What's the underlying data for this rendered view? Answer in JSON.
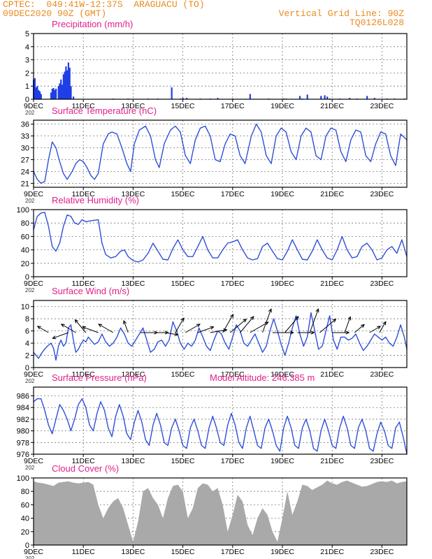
{
  "header": {
    "line1": "CPTEC:  049:41W-12:37S  ARAGUACU (TO)",
    "line2": "09DEC2020 90Z (GMT)",
    "right1": "Vertical Grid Line: 90Z",
    "right2": "TQ0126L028"
  },
  "colors": {
    "header": "#e98a1f",
    "title": "#e0208a",
    "line": "#2f4fd8",
    "bar": "#1f3fe6",
    "cloud": "#a9a9a9",
    "arrow": "#000000"
  },
  "x_axis": {
    "range_days": [
      9,
      24
    ],
    "tick_days": [
      9,
      11,
      13,
      15,
      17,
      19,
      21,
      23
    ],
    "tick_labels": [
      "9DEC",
      "11DEC",
      "13DEC",
      "15DEC",
      "17DEC",
      "19DEC",
      "21DEC",
      "23DEC"
    ],
    "year_label": "202"
  },
  "chart_data": [
    {
      "id": "precip",
      "type": "bar",
      "title": "Precipitation (mm/h)",
      "ylim": [
        0,
        5
      ],
      "yticks": [
        0,
        1,
        2,
        3,
        4,
        5
      ],
      "x": [
        9.0,
        9.05,
        9.1,
        9.15,
        9.2,
        9.25,
        9.3,
        9.7,
        9.75,
        9.8,
        9.85,
        9.9,
        10.0,
        10.05,
        10.1,
        10.15,
        10.2,
        10.25,
        10.3,
        10.35,
        10.4,
        10.45,
        10.5,
        10.6,
        12.2,
        12.8,
        13.6,
        14.0,
        14.55,
        14.9,
        15.0,
        15.15,
        15.7,
        16.1,
        16.4,
        17.0,
        17.7,
        18.45,
        19.05,
        19.15,
        19.7,
        19.8,
        20.0,
        20.55,
        20.7,
        20.8,
        20.9,
        21.3,
        21.7,
        22.0,
        22.4,
        22.7,
        23.2,
        23.5,
        23.9
      ],
      "values": [
        1.5,
        1.6,
        0.9,
        1.0,
        0.7,
        0.6,
        0.4,
        0.5,
        0.8,
        0.85,
        0.7,
        0.8,
        1.0,
        1.2,
        1.5,
        1.1,
        1.9,
        2.1,
        2.5,
        2.2,
        2.8,
        2.4,
        1.0,
        0.2,
        0.05,
        0.05,
        0.05,
        0.05,
        0.9,
        0.05,
        0.1,
        0.1,
        0.05,
        0.05,
        0.1,
        0.05,
        0.4,
        0.05,
        0.05,
        0.05,
        0.25,
        0.05,
        0.35,
        0.25,
        0.3,
        0.2,
        0.05,
        0.05,
        0.1,
        0.05,
        0.25,
        0.1,
        0.05,
        0.05,
        0.05
      ]
    },
    {
      "id": "temp",
      "type": "line",
      "title": "Surface Temperature (nC)",
      "ylim": [
        20,
        37
      ],
      "yticks": [
        21,
        24,
        27,
        30,
        33,
        36
      ],
      "x": [
        9.0,
        9.15,
        9.3,
        9.45,
        9.6,
        9.75,
        9.9,
        10.05,
        10.2,
        10.35,
        10.55,
        10.7,
        10.85,
        11.0,
        11.15,
        11.3,
        11.45,
        11.6,
        11.8,
        12.0,
        12.15,
        12.35,
        12.55,
        12.75,
        12.9,
        13.05,
        13.25,
        13.5,
        13.7,
        13.9,
        14.05,
        14.25,
        14.5,
        14.7,
        14.9,
        15.1,
        15.3,
        15.5,
        15.7,
        15.9,
        16.1,
        16.3,
        16.5,
        16.7,
        16.9,
        17.1,
        17.3,
        17.5,
        17.75,
        17.95,
        18.15,
        18.35,
        18.55,
        18.75,
        18.95,
        19.15,
        19.35,
        19.55,
        19.75,
        19.95,
        20.15,
        20.35,
        20.55,
        20.75,
        20.95,
        21.15,
        21.35,
        21.55,
        21.75,
        21.95,
        22.15,
        22.35,
        22.55,
        22.75,
        22.95,
        23.15,
        23.35,
        23.55,
        23.75,
        24.0
      ],
      "values": [
        24,
        22,
        21,
        21.5,
        27,
        31.5,
        30,
        26.5,
        23.5,
        22,
        24,
        26,
        27,
        26.5,
        25,
        23,
        22,
        23.5,
        31,
        33.5,
        34,
        33.5,
        30,
        26,
        24,
        31,
        34.5,
        35.5,
        33,
        27,
        25,
        31,
        34.5,
        35.5,
        34,
        28,
        26,
        32,
        35,
        35.5,
        33,
        27,
        26.5,
        31,
        33.5,
        33,
        28,
        26,
        33,
        36,
        34,
        28,
        26,
        33,
        35,
        34,
        29,
        27,
        33,
        35,
        34,
        28,
        27,
        33,
        35,
        34.5,
        29,
        26.5,
        32,
        34.5,
        34,
        28,
        26.5,
        31,
        34,
        33.5,
        28,
        25.5,
        33.5,
        32
      ]
    },
    {
      "id": "rh",
      "type": "line",
      "title": "Relative Humidity (%)",
      "ylim": [
        0,
        100
      ],
      "yticks": [
        0,
        20,
        40,
        60,
        80,
        100
      ],
      "x": [
        9.0,
        9.15,
        9.3,
        9.45,
        9.6,
        9.75,
        9.9,
        10.05,
        10.2,
        10.35,
        10.5,
        10.65,
        10.8,
        10.95,
        11.1,
        11.25,
        11.4,
        11.6,
        11.75,
        11.9,
        12.1,
        12.3,
        12.5,
        12.65,
        12.8,
        13.0,
        13.2,
        13.4,
        13.6,
        13.8,
        14.0,
        14.2,
        14.4,
        14.6,
        14.8,
        15.0,
        15.2,
        15.4,
        15.6,
        15.8,
        16.0,
        16.2,
        16.4,
        16.6,
        16.8,
        17.0,
        17.2,
        17.4,
        17.6,
        17.8,
        18.0,
        18.2,
        18.4,
        18.6,
        18.8,
        19.0,
        19.2,
        19.4,
        19.6,
        19.8,
        20.0,
        20.2,
        20.4,
        20.6,
        20.8,
        21.0,
        21.2,
        21.4,
        21.6,
        21.8,
        22.0,
        22.2,
        22.4,
        22.6,
        22.8,
        23.0,
        23.2,
        23.4,
        23.6,
        23.8,
        24.0
      ],
      "values": [
        70,
        90,
        95,
        96,
        75,
        45,
        38,
        50,
        75,
        92,
        90,
        80,
        78,
        85,
        82,
        83,
        84,
        85,
        50,
        33,
        28,
        30,
        38,
        40,
        30,
        24,
        22,
        25,
        35,
        50,
        38,
        26,
        25,
        42,
        55,
        40,
        30,
        30,
        45,
        60,
        40,
        28,
        28,
        40,
        50,
        52,
        55,
        40,
        28,
        25,
        27,
        45,
        50,
        38,
        27,
        25,
        38,
        55,
        40,
        26,
        25,
        38,
        55,
        40,
        28,
        25,
        40,
        60,
        40,
        28,
        30,
        45,
        50,
        40,
        25,
        28,
        40,
        45,
        35,
        55,
        30
      ]
    },
    {
      "id": "wind",
      "type": "line",
      "title": "Surface Wind (m/s)",
      "ylim": [
        0,
        11
      ],
      "yticks": [
        0,
        2,
        4,
        6,
        8,
        10
      ],
      "x": [
        9.0,
        9.1,
        9.2,
        9.3,
        9.4,
        9.55,
        9.7,
        9.8,
        9.9,
        10.0,
        10.1,
        10.2,
        10.3,
        10.4,
        10.5,
        10.6,
        10.7,
        10.8,
        10.9,
        11.0,
        11.1,
        11.2,
        11.3,
        11.45,
        11.6,
        11.75,
        11.9,
        12.05,
        12.2,
        12.35,
        12.5,
        12.65,
        12.8,
        12.95,
        13.1,
        13.25,
        13.4,
        13.55,
        13.7,
        13.85,
        14.0,
        14.15,
        14.3,
        14.45,
        14.6,
        14.75,
        14.9,
        15.05,
        15.2,
        15.35,
        15.5,
        15.65,
        15.8,
        15.95,
        16.1,
        16.25,
        16.4,
        16.55,
        16.7,
        16.85,
        17.0,
        17.15,
        17.3,
        17.45,
        17.6,
        17.75,
        17.9,
        18.05,
        18.2,
        18.35,
        18.5,
        18.65,
        18.8,
        18.95,
        19.1,
        19.25,
        19.4,
        19.55,
        19.7,
        19.85,
        20.0,
        20.15,
        20.3,
        20.45,
        20.6,
        20.75,
        20.9,
        21.05,
        21.2,
        21.35,
        21.5,
        21.65,
        21.8,
        21.95,
        22.1,
        22.25,
        22.4,
        22.55,
        22.7,
        22.85,
        23.0,
        23.15,
        23.3,
        23.45,
        23.6,
        23.75,
        23.9,
        24.0
      ],
      "values": [
        2.5,
        2.0,
        1.5,
        2.2,
        2.8,
        3.5,
        4.0,
        3.2,
        1.2,
        3.5,
        4.5,
        3.5,
        4.0,
        6.5,
        7.0,
        4.5,
        2.5,
        3.0,
        3.8,
        4.5,
        4.2,
        5.0,
        4.5,
        3.8,
        4.2,
        5.5,
        4.2,
        3.5,
        4.0,
        5.0,
        6.5,
        5.5,
        4.0,
        3.5,
        4.5,
        5.5,
        6.5,
        4.5,
        2.5,
        3.0,
        4.2,
        4.5,
        3.5,
        4.5,
        7.5,
        6.0,
        4.0,
        3.0,
        4.0,
        3.5,
        4.5,
        6.5,
        5.0,
        3.5,
        2.8,
        4.5,
        6.0,
        5.5,
        4.0,
        3.0,
        5.0,
        7.0,
        6.0,
        4.0,
        3.5,
        4.5,
        5.5,
        4.0,
        2.5,
        3.5,
        6.0,
        8.0,
        6.0,
        3.8,
        2.0,
        4.0,
        6.5,
        8.5,
        5.5,
        3.5,
        5.0,
        9.0,
        6.0,
        3.0,
        3.5,
        6.0,
        8.5,
        4.5,
        3.0,
        5.0,
        5.0,
        4.5,
        4.8,
        5.5,
        4.0,
        2.8,
        3.5,
        4.5,
        5.5,
        5.0,
        4.5,
        5.0,
        4.0,
        3.5,
        5.0,
        7.0,
        5.0,
        3.0
      ]
    },
    {
      "id": "pressure",
      "type": "line",
      "title": "Surface Pressure (hPa)",
      "annotation": "Model Altitude: 246.385  m",
      "ylim": [
        976,
        987.5
      ],
      "yticks": [
        976,
        978,
        980,
        982,
        984,
        986
      ],
      "x": [
        9.0,
        9.15,
        9.3,
        9.45,
        9.6,
        9.75,
        9.9,
        10.05,
        10.2,
        10.35,
        10.5,
        10.65,
        10.8,
        10.95,
        11.1,
        11.25,
        11.4,
        11.55,
        11.7,
        11.85,
        12.0,
        12.15,
        12.3,
        12.45,
        12.6,
        12.75,
        12.9,
        13.05,
        13.2,
        13.35,
        13.5,
        13.65,
        13.8,
        13.95,
        14.1,
        14.25,
        14.4,
        14.55,
        14.7,
        14.85,
        15.0,
        15.15,
        15.3,
        15.45,
        15.6,
        15.75,
        15.9,
        16.05,
        16.2,
        16.35,
        16.5,
        16.65,
        16.8,
        16.95,
        17.1,
        17.25,
        17.4,
        17.55,
        17.7,
        17.85,
        18.0,
        18.15,
        18.3,
        18.45,
        18.6,
        18.75,
        18.9,
        19.05,
        19.2,
        19.35,
        19.5,
        19.65,
        19.8,
        19.95,
        20.1,
        20.25,
        20.4,
        20.55,
        20.7,
        20.85,
        21.0,
        21.15,
        21.3,
        21.45,
        21.6,
        21.75,
        21.9,
        22.05,
        22.2,
        22.35,
        22.5,
        22.65,
        22.8,
        22.95,
        23.1,
        23.25,
        23.4,
        23.55,
        23.7,
        23.85,
        24.0
      ],
      "values": [
        985,
        985.5,
        985.5,
        983.5,
        981,
        979.5,
        982,
        984.5,
        983.5,
        982,
        980,
        982,
        984.5,
        985.5,
        984,
        981,
        980,
        983,
        985,
        983.5,
        980.5,
        979,
        982.5,
        984.5,
        982.5,
        979.5,
        978.5,
        981.5,
        983.5,
        981.5,
        978.5,
        977.5,
        981,
        983,
        981,
        978,
        977.5,
        980.5,
        982,
        980,
        977.5,
        977,
        980.5,
        982,
        980,
        977.5,
        977,
        980.5,
        982.5,
        980.5,
        978,
        977.5,
        981,
        983,
        981,
        978,
        977,
        980.5,
        982.5,
        980,
        977.5,
        977,
        980.5,
        982,
        980,
        977.5,
        976.5,
        980.5,
        982.5,
        980.5,
        977.5,
        977,
        980.5,
        982,
        980,
        977,
        976.5,
        980,
        982,
        980,
        977.5,
        977,
        980.5,
        982.5,
        980.5,
        977.5,
        977,
        980.5,
        982,
        980,
        977,
        976.5,
        979.5,
        981.5,
        980,
        977.5,
        977,
        980.5,
        981.5,
        979,
        976
      ]
    },
    {
      "id": "cloud",
      "type": "area",
      "title": "Cloud Cover (%)",
      "ylim": [
        0,
        100
      ],
      "yticks": [
        0,
        20,
        40,
        60,
        80,
        100
      ],
      "x": [
        9.0,
        9.2,
        9.4,
        9.6,
        9.8,
        10.0,
        10.2,
        10.4,
        10.6,
        10.8,
        11.0,
        11.2,
        11.4,
        11.6,
        11.8,
        12.0,
        12.2,
        12.4,
        12.6,
        12.8,
        13.0,
        13.2,
        13.4,
        13.6,
        13.8,
        14.0,
        14.2,
        14.4,
        14.6,
        14.8,
        15.0,
        15.2,
        15.4,
        15.6,
        15.8,
        16.0,
        16.2,
        16.4,
        16.6,
        16.8,
        17.0,
        17.2,
        17.4,
        17.6,
        17.8,
        18.0,
        18.2,
        18.4,
        18.6,
        18.8,
        19.0,
        19.2,
        19.4,
        19.6,
        19.8,
        20.0,
        20.2,
        20.4,
        20.6,
        20.8,
        21.0,
        21.2,
        21.4,
        21.6,
        21.8,
        22.0,
        22.2,
        22.4,
        22.6,
        22.8,
        23.0,
        23.2,
        23.4,
        23.6,
        23.8,
        24.0
      ],
      "values": [
        95,
        93,
        92,
        90,
        88,
        93,
        94,
        95,
        93,
        92,
        93,
        94,
        90,
        60,
        40,
        55,
        65,
        70,
        55,
        30,
        5,
        35,
        80,
        85,
        70,
        60,
        40,
        70,
        88,
        90,
        80,
        40,
        55,
        85,
        92,
        90,
        80,
        85,
        60,
        20,
        45,
        75,
        65,
        30,
        15,
        40,
        55,
        45,
        20,
        5,
        40,
        80,
        45,
        65,
        90,
        88,
        82,
        86,
        90,
        96,
        92,
        90,
        94,
        96,
        93,
        90,
        87,
        88,
        91,
        94,
        95,
        94,
        96,
        92,
        94,
        95
      ]
    }
  ],
  "wind_vectors": {
    "speed_units": "m/s",
    "points": [
      {
        "day": 9.6,
        "speed": 3,
        "dir": 300
      },
      {
        "day": 10.4,
        "speed": 4,
        "dir": 250
      },
      {
        "day": 10.7,
        "speed": 4,
        "dir": 300
      },
      {
        "day": 11.1,
        "speed": 4,
        "dir": 320
      },
      {
        "day": 11.6,
        "speed": 4,
        "dir": 290
      },
      {
        "day": 12.2,
        "speed": 4,
        "dir": 300
      },
      {
        "day": 12.8,
        "speed": 3,
        "dir": 340
      },
      {
        "day": 13.3,
        "speed": 4,
        "dir": 90
      },
      {
        "day": 13.9,
        "speed": 3,
        "dir": 90
      },
      {
        "day": 14.3,
        "speed": 3,
        "dir": 100
      },
      {
        "day": 14.7,
        "speed": 4,
        "dir": 30
      },
      {
        "day": 15.1,
        "speed": 4,
        "dir": 60
      },
      {
        "day": 15.6,
        "speed": 4,
        "dir": 70
      },
      {
        "day": 16.1,
        "speed": 4,
        "dir": 80
      },
      {
        "day": 16.6,
        "speed": 5,
        "dir": 30
      },
      {
        "day": 16.9,
        "speed": 5,
        "dir": 50
      },
      {
        "day": 17.3,
        "speed": 5,
        "dir": 40
      },
      {
        "day": 17.7,
        "speed": 5,
        "dir": 60
      },
      {
        "day": 18.2,
        "speed": 6,
        "dir": 20
      },
      {
        "day": 18.6,
        "speed": 5,
        "dir": 90
      },
      {
        "day": 19.1,
        "speed": 5,
        "dir": 40
      },
      {
        "day": 19.6,
        "speed": 4,
        "dir": 90
      },
      {
        "day": 20.1,
        "speed": 6,
        "dir": 20
      },
      {
        "day": 20.5,
        "speed": 5,
        "dir": 50
      },
      {
        "day": 21.0,
        "speed": 4,
        "dir": 90
      },
      {
        "day": 21.5,
        "speed": 4,
        "dir": 20
      },
      {
        "day": 21.9,
        "speed": 3,
        "dir": 50
      },
      {
        "day": 22.5,
        "speed": 3,
        "dir": 60
      },
      {
        "day": 22.9,
        "speed": 3,
        "dir": 30
      }
    ]
  }
}
